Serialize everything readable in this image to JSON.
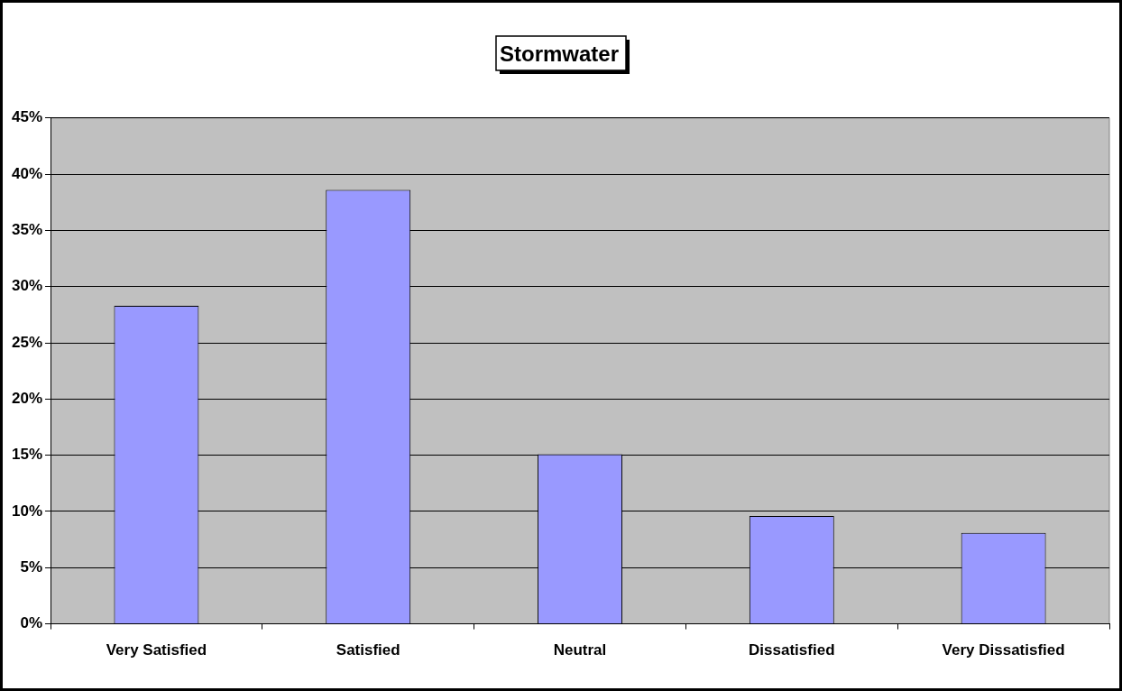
{
  "chart_data": {
    "type": "bar",
    "title": "Stormwater",
    "categories": [
      "Very Satisfied",
      "Satisfied",
      "Neutral",
      "Dissatisfied",
      "Very Dissatisfied"
    ],
    "values": [
      28.3,
      38.6,
      15.1,
      9.6,
      8.1
    ],
    "color": "#9999ff",
    "ylim": [
      0,
      45
    ],
    "yticks": [
      {
        "value": 0,
        "label": "0%"
      },
      {
        "value": 5,
        "label": "5%"
      },
      {
        "value": 10,
        "label": "10%"
      },
      {
        "value": 15,
        "label": "15%"
      },
      {
        "value": 20,
        "label": "20%"
      },
      {
        "value": 25,
        "label": "25%"
      },
      {
        "value": 30,
        "label": "30%"
      },
      {
        "value": 35,
        "label": "35%"
      },
      {
        "value": 40,
        "label": "40%"
      },
      {
        "value": 45,
        "label": "45%"
      }
    ],
    "grid": "y",
    "legend": false
  }
}
